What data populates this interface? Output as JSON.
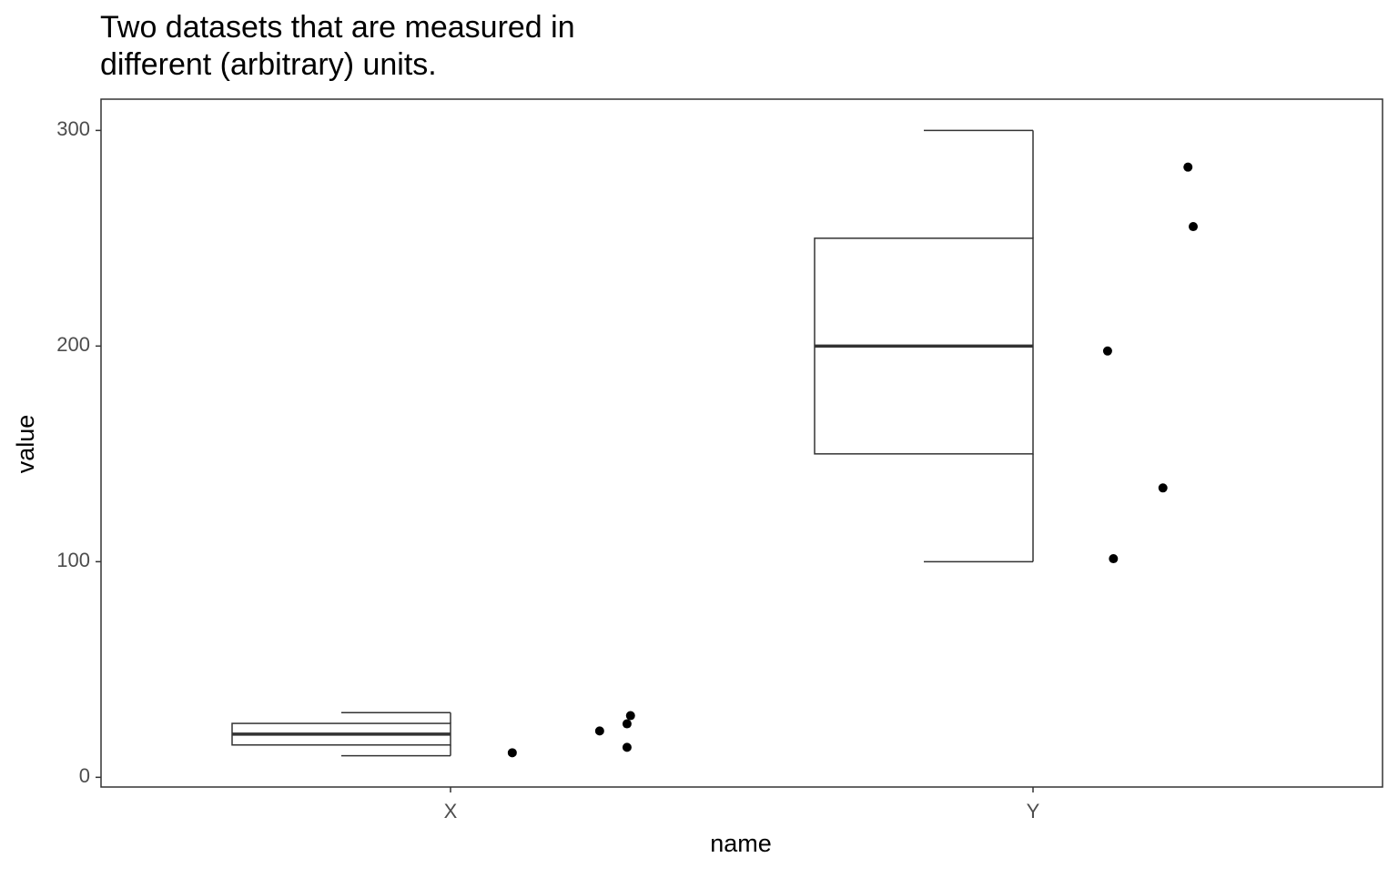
{
  "chart_data": {
    "type": "boxplot",
    "title": [
      "Two datasets that are measured in",
      "different (arbitrary) units."
    ],
    "x_label": "name",
    "y_label": "value",
    "categories": [
      "X",
      "Y"
    ],
    "boxes": [
      {
        "min": 10,
        "q1": 15,
        "median": 20,
        "q3": 25,
        "max": 30
      },
      {
        "min": 100,
        "q1": 150,
        "median": 200,
        "q3": 250,
        "max": 300
      }
    ],
    "points": {
      "x": [
        1.106,
        1.256,
        1.303,
        1.309,
        1.303,
        2.266,
        2.275,
        2.128,
        2.223,
        2.138
      ],
      "values": [
        11.4,
        21.5,
        24.8,
        28.6,
        13.9,
        283,
        255.4,
        197.7,
        134.2,
        101.4
      ]
    },
    "color": "#000000",
    "xlim": [
      0.4,
      2.6
    ],
    "ylim": [
      -4.5,
      314.5
    ],
    "yticks": [
      0,
      100,
      200,
      300
    ]
  }
}
